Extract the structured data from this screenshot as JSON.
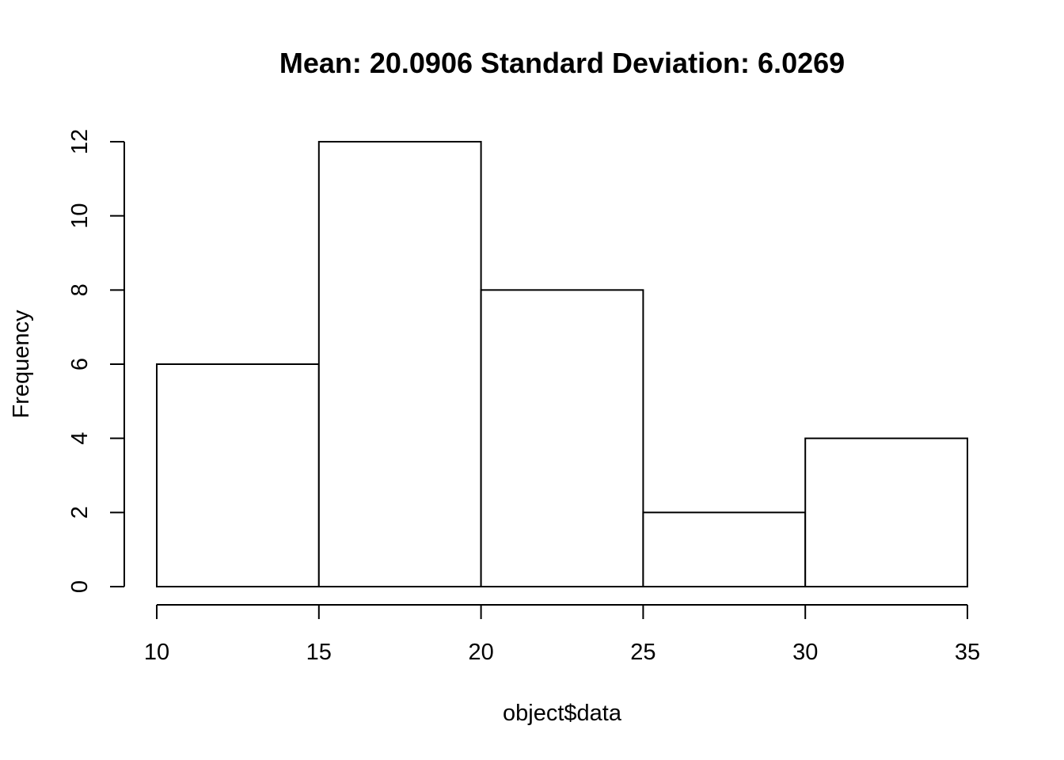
{
  "chart_data": {
    "type": "bar",
    "title": "Mean: 20.0906 Standard Deviation: 6.0269",
    "xlabel": "object$data",
    "ylabel": "Frequency",
    "bins": [
      {
        "start": 10,
        "end": 15,
        "count": 6
      },
      {
        "start": 15,
        "end": 20,
        "count": 12
      },
      {
        "start": 20,
        "end": 25,
        "count": 8
      },
      {
        "start": 25,
        "end": 30,
        "count": 2
      },
      {
        "start": 30,
        "end": 35,
        "count": 4
      }
    ],
    "x_ticks": [
      10,
      15,
      20,
      25,
      30,
      35
    ],
    "y_ticks": [
      0,
      2,
      4,
      6,
      8,
      10,
      12
    ],
    "xlim": [
      10,
      35
    ],
    "ylim": [
      0,
      12
    ],
    "grid": false,
    "bar_fill": "#ffffff",
    "bar_stroke": "#000000"
  }
}
